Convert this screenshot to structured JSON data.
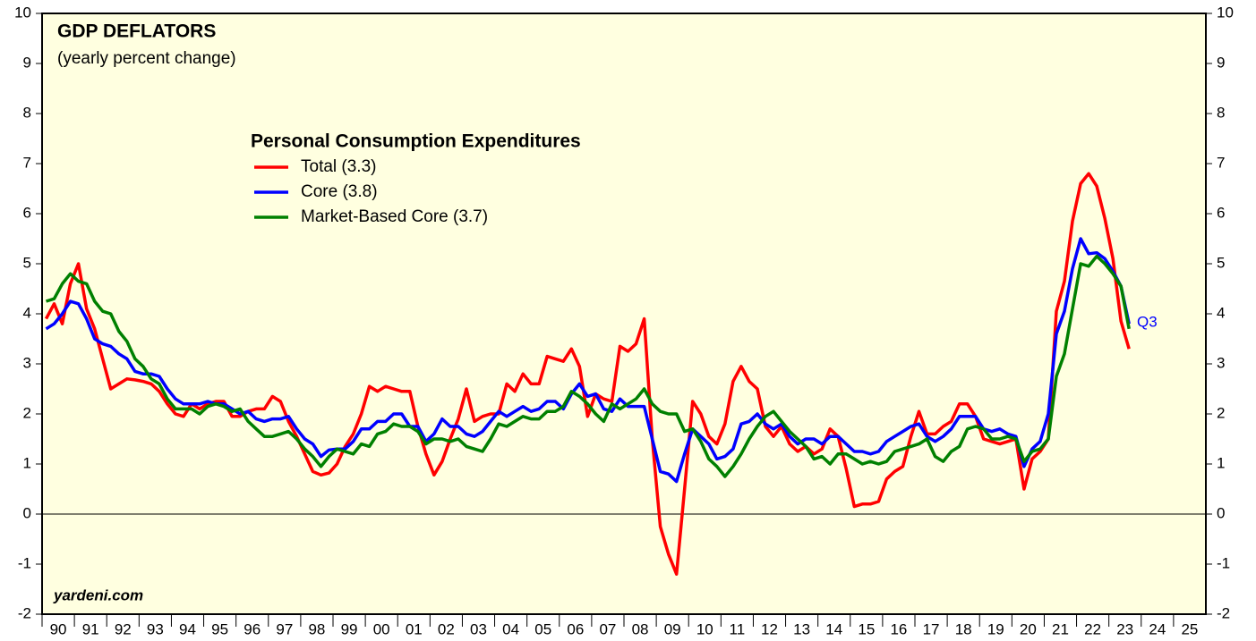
{
  "chart_data": {
    "type": "line",
    "title": "GDP DEFLATORS",
    "subtitle": "(yearly percent change)",
    "legend_title": "Personal Consumption Expenditures",
    "annotations": [
      "Q3",
      "yardeni.com"
    ],
    "xlim": [
      1990,
      2026
    ],
    "ylim": [
      -2,
      10
    ],
    "yticks": [
      -2,
      -1,
      0,
      1,
      2,
      3,
      4,
      5,
      6,
      7,
      8,
      9,
      10
    ],
    "xticks": [
      {
        "value": 1990,
        "label": "90"
      },
      {
        "value": 1991,
        "label": "91"
      },
      {
        "value": 1992,
        "label": "92"
      },
      {
        "value": 1993,
        "label": "93"
      },
      {
        "value": 1994,
        "label": "94"
      },
      {
        "value": 1995,
        "label": "95"
      },
      {
        "value": 1996,
        "label": "96"
      },
      {
        "value": 1997,
        "label": "97"
      },
      {
        "value": 1998,
        "label": "98"
      },
      {
        "value": 1999,
        "label": "99"
      },
      {
        "value": 2000,
        "label": "00"
      },
      {
        "value": 2001,
        "label": "01"
      },
      {
        "value": 2002,
        "label": "02"
      },
      {
        "value": 2003,
        "label": "03"
      },
      {
        "value": 2004,
        "label": "04"
      },
      {
        "value": 2005,
        "label": "05"
      },
      {
        "value": 2006,
        "label": "06"
      },
      {
        "value": 2007,
        "label": "07"
      },
      {
        "value": 2008,
        "label": "08"
      },
      {
        "value": 2009,
        "label": "09"
      },
      {
        "value": 2010,
        "label": "10"
      },
      {
        "value": 2011,
        "label": "11"
      },
      {
        "value": 2012,
        "label": "12"
      },
      {
        "value": 2013,
        "label": "13"
      },
      {
        "value": 2014,
        "label": "14"
      },
      {
        "value": 2015,
        "label": "15"
      },
      {
        "value": 2016,
        "label": "16"
      },
      {
        "value": 2017,
        "label": "17"
      },
      {
        "value": 2018,
        "label": "18"
      },
      {
        "value": 2019,
        "label": "19"
      },
      {
        "value": 2020,
        "label": "20"
      },
      {
        "value": 2021,
        "label": "21"
      },
      {
        "value": 2022,
        "label": "22"
      },
      {
        "value": 2023,
        "label": "23"
      },
      {
        "value": 2024,
        "label": "24"
      },
      {
        "value": 2025,
        "label": "25"
      }
    ],
    "x": [
      1990.125,
      1990.375,
      1990.625,
      1990.875,
      1991.125,
      1991.375,
      1991.625,
      1991.875,
      1992.125,
      1992.375,
      1992.625,
      1992.875,
      1993.125,
      1993.375,
      1993.625,
      1993.875,
      1994.125,
      1994.375,
      1994.625,
      1994.875,
      1995.125,
      1995.375,
      1995.625,
      1995.875,
      1996.125,
      1996.375,
      1996.625,
      1996.875,
      1997.125,
      1997.375,
      1997.625,
      1997.875,
      1998.125,
      1998.375,
      1998.625,
      1998.875,
      1999.125,
      1999.375,
      1999.625,
      1999.875,
      2000.125,
      2000.375,
      2000.625,
      2000.875,
      2001.125,
      2001.375,
      2001.625,
      2001.875,
      2002.125,
      2002.375,
      2002.625,
      2002.875,
      2003.125,
      2003.375,
      2003.625,
      2003.875,
      2004.125,
      2004.375,
      2004.625,
      2004.875,
      2005.125,
      2005.375,
      2005.625,
      2005.875,
      2006.125,
      2006.375,
      2006.625,
      2006.875,
      2007.125,
      2007.375,
      2007.625,
      2007.875,
      2008.125,
      2008.375,
      2008.625,
      2008.875,
      2009.125,
      2009.375,
      2009.625,
      2009.875,
      2010.125,
      2010.375,
      2010.625,
      2010.875,
      2011.125,
      2011.375,
      2011.625,
      2011.875,
      2012.125,
      2012.375,
      2012.625,
      2012.875,
      2013.125,
      2013.375,
      2013.625,
      2013.875,
      2014.125,
      2014.375,
      2014.625,
      2014.875,
      2015.125,
      2015.375,
      2015.625,
      2015.875,
      2016.125,
      2016.375,
      2016.625,
      2016.875,
      2017.125,
      2017.375,
      2017.625,
      2017.875,
      2018.125,
      2018.375,
      2018.625,
      2018.875,
      2019.125,
      2019.375,
      2019.625,
      2019.875,
      2020.125,
      2020.375,
      2020.625,
      2020.875,
      2021.125,
      2021.375,
      2021.625,
      2021.875,
      2022.125,
      2022.375,
      2022.625,
      2022.875,
      2023.125,
      2023.375,
      2023.625
    ],
    "series": [
      {
        "name": "Total (3.3)",
        "color": "#ff0000",
        "values": [
          3.9,
          4.2,
          3.8,
          4.6,
          5.0,
          4.1,
          3.7,
          3.1,
          2.5,
          2.6,
          2.7,
          2.68,
          2.65,
          2.6,
          2.45,
          2.2,
          2.0,
          1.95,
          2.2,
          2.1,
          2.2,
          2.25,
          2.25,
          1.95,
          1.95,
          2.05,
          2.1,
          2.1,
          2.35,
          2.25,
          1.85,
          1.55,
          1.2,
          0.85,
          0.78,
          0.82,
          1.0,
          1.35,
          1.6,
          2.0,
          2.55,
          2.45,
          2.55,
          2.5,
          2.45,
          2.45,
          1.75,
          1.2,
          0.78,
          1.05,
          1.5,
          1.9,
          2.5,
          1.85,
          1.95,
          2.0,
          2.0,
          2.6,
          2.45,
          2.8,
          2.6,
          2.6,
          3.15,
          3.1,
          3.05,
          3.3,
          2.95,
          1.95,
          2.4,
          2.3,
          2.25,
          3.35,
          3.25,
          3.4,
          3.9,
          1.5,
          -0.25,
          -0.8,
          -1.2,
          0.5,
          2.25,
          2.0,
          1.55,
          1.4,
          1.8,
          2.65,
          2.95,
          2.65,
          2.5,
          1.75,
          1.55,
          1.75,
          1.4,
          1.25,
          1.35,
          1.2,
          1.3,
          1.7,
          1.55,
          0.9,
          0.15,
          0.2,
          0.2,
          0.25,
          0.7,
          0.85,
          0.95,
          1.55,
          2.05,
          1.6,
          1.6,
          1.75,
          1.85,
          2.2,
          2.2,
          1.95,
          1.5,
          1.45,
          1.4,
          1.45,
          1.5,
          0.5,
          1.1,
          1.25,
          1.5,
          4.05,
          4.65,
          5.85,
          6.6,
          6.8,
          6.55,
          5.9,
          5.1,
          3.85,
          3.3
        ]
      },
      {
        "name": "Core (3.8)",
        "color": "#0000ff",
        "values": [
          3.7,
          3.8,
          4.0,
          4.25,
          4.2,
          3.9,
          3.5,
          3.4,
          3.35,
          3.2,
          3.1,
          2.85,
          2.8,
          2.8,
          2.75,
          2.5,
          2.3,
          2.2,
          2.2,
          2.2,
          2.25,
          2.2,
          2.2,
          2.1,
          2.0,
          2.05,
          1.9,
          1.85,
          1.9,
          1.9,
          1.95,
          1.7,
          1.5,
          1.4,
          1.15,
          1.28,
          1.3,
          1.3,
          1.45,
          1.7,
          1.7,
          1.85,
          1.85,
          2.0,
          2.0,
          1.75,
          1.75,
          1.45,
          1.6,
          1.9,
          1.75,
          1.75,
          1.6,
          1.55,
          1.65,
          1.85,
          2.05,
          1.95,
          2.05,
          2.15,
          2.05,
          2.1,
          2.25,
          2.25,
          2.1,
          2.4,
          2.6,
          2.35,
          2.4,
          2.1,
          2.05,
          2.3,
          2.15,
          2.15,
          2.15,
          1.5,
          0.85,
          0.8,
          0.65,
          1.2,
          1.7,
          1.55,
          1.4,
          1.1,
          1.15,
          1.3,
          1.8,
          1.85,
          2.0,
          1.8,
          1.7,
          1.8,
          1.55,
          1.4,
          1.5,
          1.5,
          1.4,
          1.55,
          1.55,
          1.4,
          1.25,
          1.25,
          1.2,
          1.25,
          1.45,
          1.55,
          1.65,
          1.75,
          1.8,
          1.55,
          1.45,
          1.55,
          1.7,
          1.95,
          1.95,
          1.95,
          1.7,
          1.65,
          1.7,
          1.6,
          1.55,
          0.95,
          1.3,
          1.45,
          2.0,
          3.6,
          4.05,
          4.9,
          5.5,
          5.2,
          5.22,
          5.1,
          4.85,
          4.55,
          3.8
        ]
      },
      {
        "name": "Market-Based Core (3.7)",
        "color": "#008000",
        "values": [
          4.25,
          4.3,
          4.6,
          4.8,
          4.65,
          4.6,
          4.25,
          4.05,
          4.0,
          3.65,
          3.45,
          3.1,
          2.95,
          2.7,
          2.6,
          2.3,
          2.1,
          2.1,
          2.1,
          2.0,
          2.15,
          2.2,
          2.15,
          2.05,
          2.1,
          1.85,
          1.7,
          1.55,
          1.55,
          1.6,
          1.65,
          1.5,
          1.3,
          1.15,
          0.95,
          1.15,
          1.3,
          1.25,
          1.2,
          1.4,
          1.35,
          1.6,
          1.65,
          1.8,
          1.75,
          1.75,
          1.65,
          1.4,
          1.5,
          1.5,
          1.45,
          1.5,
          1.35,
          1.3,
          1.25,
          1.5,
          1.8,
          1.75,
          1.85,
          1.95,
          1.9,
          1.9,
          2.05,
          2.05,
          2.15,
          2.45,
          2.35,
          2.2,
          2.0,
          1.85,
          2.2,
          2.1,
          2.2,
          2.3,
          2.5,
          2.2,
          2.05,
          2.0,
          2.0,
          1.65,
          1.7,
          1.45,
          1.1,
          0.95,
          0.75,
          0.95,
          1.2,
          1.5,
          1.75,
          1.95,
          2.05,
          1.85,
          1.65,
          1.5,
          1.35,
          1.1,
          1.15,
          1.0,
          1.2,
          1.2,
          1.1,
          1.0,
          1.05,
          1.0,
          1.05,
          1.25,
          1.3,
          1.35,
          1.4,
          1.5,
          1.15,
          1.05,
          1.25,
          1.35,
          1.7,
          1.75,
          1.7,
          1.5,
          1.5,
          1.55,
          1.5,
          1.05,
          1.25,
          1.3,
          1.5,
          2.75,
          3.2,
          4.1,
          5.0,
          4.95,
          5.15,
          5.0,
          4.8,
          4.55,
          3.7
        ]
      }
    ]
  }
}
